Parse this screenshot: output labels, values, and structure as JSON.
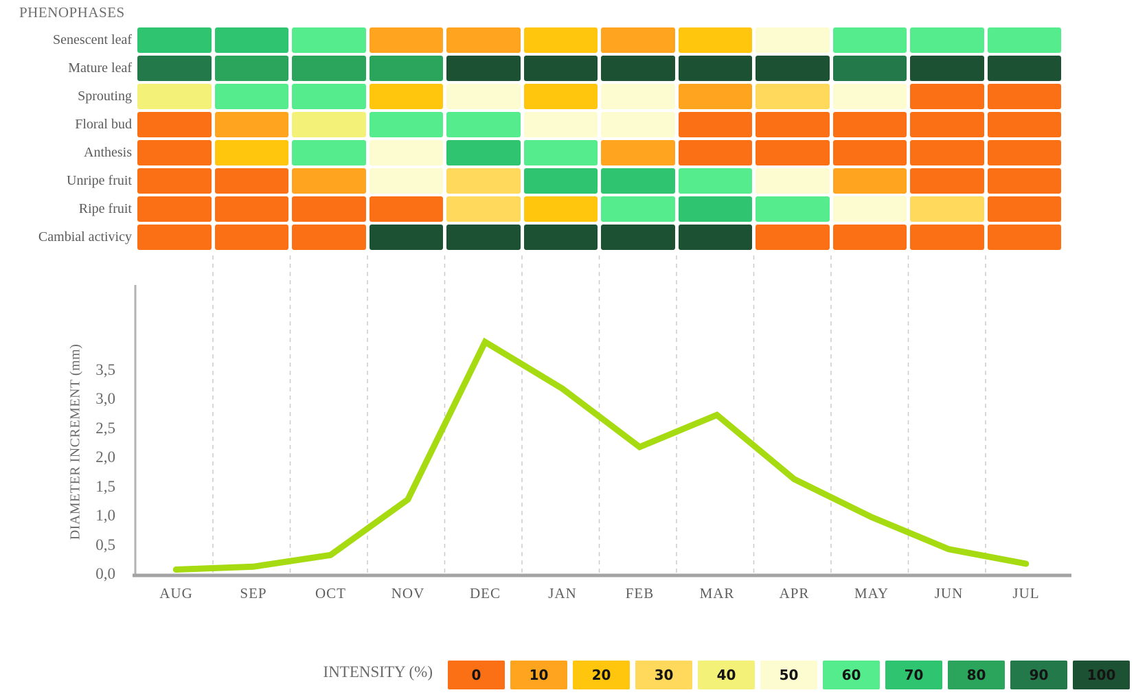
{
  "title": "PHENOPHASES",
  "months": [
    "AUG",
    "SEP",
    "OCT",
    "NOV",
    "DEC",
    "JAN",
    "FEB",
    "MAR",
    "APR",
    "MAY",
    "JUN",
    "JUL"
  ],
  "legend": {
    "label": "INTENSITY (%)",
    "values": [
      "0",
      "10",
      "20",
      "30",
      "40",
      "50",
      "60",
      "70",
      "80",
      "90",
      "100"
    ]
  },
  "palette": {
    "0": "#FB7014",
    "10": "#FFA41E",
    "20": "#FFC60D",
    "30": "#FFD95C",
    "40": "#F4F178",
    "50": "#FDFBD0",
    "60": "#54EC8C",
    "70": "#2FC46F",
    "80": "#2AA55B",
    "90": "#23794A",
    "100": "#1C5233"
  },
  "chart_data": [
    {
      "type": "heatmap",
      "title": "PHENOPHASES",
      "categories": [
        "AUG",
        "SEP",
        "OCT",
        "NOV",
        "DEC",
        "JAN",
        "FEB",
        "MAR",
        "APR",
        "MAY",
        "JUN",
        "JUL"
      ],
      "legend_label": "INTENSITY (%)",
      "scale_values": [
        0,
        10,
        20,
        30,
        40,
        50,
        60,
        70,
        80,
        90,
        100
      ],
      "rows": [
        {
          "label": "Senescent leaf",
          "values": [
            70,
            70,
            60,
            10,
            10,
            20,
            10,
            20,
            50,
            60,
            60,
            60
          ]
        },
        {
          "label": "Mature leaf",
          "values": [
            90,
            80,
            80,
            80,
            100,
            100,
            100,
            100,
            100,
            90,
            100,
            100
          ]
        },
        {
          "label": "Sprouting",
          "values": [
            40,
            60,
            60,
            20,
            50,
            20,
            50,
            10,
            30,
            50,
            0,
            0
          ]
        },
        {
          "label": "Floral bud",
          "values": [
            0,
            10,
            40,
            60,
            60,
            50,
            50,
            0,
            0,
            0,
            0,
            0
          ]
        },
        {
          "label": "Anthesis",
          "values": [
            0,
            20,
            60,
            50,
            70,
            60,
            10,
            0,
            0,
            0,
            0,
            0
          ]
        },
        {
          "label": "Unripe fruit",
          "values": [
            0,
            0,
            10,
            50,
            30,
            70,
            70,
            60,
            50,
            10,
            0,
            0
          ]
        },
        {
          "label": "Ripe fruit",
          "values": [
            0,
            0,
            0,
            0,
            30,
            20,
            60,
            70,
            60,
            50,
            30,
            0
          ]
        },
        {
          "label": "Cambial activicy",
          "values": [
            0,
            0,
            0,
            100,
            100,
            100,
            100,
            100,
            0,
            0,
            0,
            0
          ]
        }
      ]
    },
    {
      "type": "line",
      "x": [
        "AUG",
        "SEP",
        "OCT",
        "NOV",
        "DEC",
        "JAN",
        "FEB",
        "MAR",
        "APR",
        "MAY",
        "JUN",
        "JUL"
      ],
      "values": [
        0.1,
        0.15,
        0.35,
        1.3,
        4.0,
        3.2,
        2.2,
        2.75,
        1.65,
        1.0,
        0.45,
        0.2
      ],
      "ylabel": "DIAMETER INCREMENT (mm)",
      "yticks": [
        "0,0",
        "0,5",
        "1,0",
        "1,5",
        "2,0",
        "2,5",
        "3,0",
        "3,5"
      ],
      "ytick_step_mm": 0.5,
      "ylim": [
        0,
        4.2
      ],
      "line_color": "#A6DA11",
      "grid": "dashed-vertical"
    }
  ]
}
